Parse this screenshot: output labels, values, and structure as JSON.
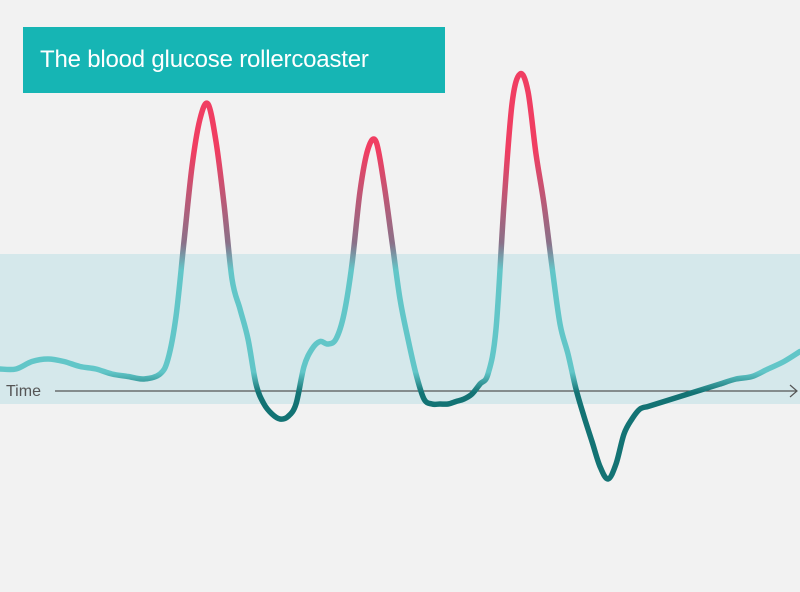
{
  "chart_data": {
    "type": "line",
    "title": "The blood glucose rollercoaster",
    "xlabel": "Time",
    "ylabel": "",
    "x": [
      0,
      2,
      4,
      6,
      8,
      10,
      12,
      14,
      16,
      18,
      20,
      21,
      22,
      23,
      24,
      25,
      26,
      27,
      28,
      29,
      30,
      31,
      32,
      33,
      34,
      35,
      36,
      37,
      38,
      39,
      40,
      41,
      42,
      43,
      44,
      45,
      46,
      47,
      48,
      49,
      50,
      51,
      52,
      53,
      54,
      55,
      56,
      57,
      58,
      59,
      60,
      61,
      62,
      63,
      64,
      65,
      66,
      67,
      68,
      69,
      70,
      71,
      72,
      73,
      74,
      75,
      76,
      77,
      78,
      79,
      80,
      81,
      82,
      83,
      84,
      85,
      86,
      87,
      88,
      89,
      90,
      92,
      94,
      96,
      98,
      100
    ],
    "series": [
      {
        "values": [
          54,
          54,
          57,
          58,
          57,
          55,
          54,
          52,
          51,
          50,
          52,
          58,
          75,
          105,
          135,
          154,
          160,
          145,
          120,
          90,
          78,
          66,
          48,
          40,
          36,
          34,
          35,
          40,
          55,
          62,
          65,
          64,
          66,
          76,
          96,
          125,
          142,
          145,
          128,
          105,
          82,
          66,
          52,
          42,
          40,
          40,
          40,
          41,
          42,
          44,
          48,
          52,
          70,
          120,
          160,
          172,
          165,
          140,
          120,
          95,
          72,
          60,
          46,
          35,
          25,
          15,
          10,
          16,
          28,
          34,
          38,
          39,
          40,
          41,
          42,
          43,
          44,
          45,
          46,
          47,
          48,
          50,
          51,
          54,
          57,
          61
        ]
      }
    ],
    "target_range": [
      40,
      100
    ],
    "ylim": [
      0,
      200
    ],
    "grid": false,
    "colors": {
      "background": "#f2f2f2",
      "target_band": "#d5e8eb",
      "title_box": "#16b5b4",
      "title_text": "#ffffff",
      "in_range": "#62c6c8",
      "high": "#f03e62",
      "low": "#137374",
      "axis": "#555555"
    }
  }
}
